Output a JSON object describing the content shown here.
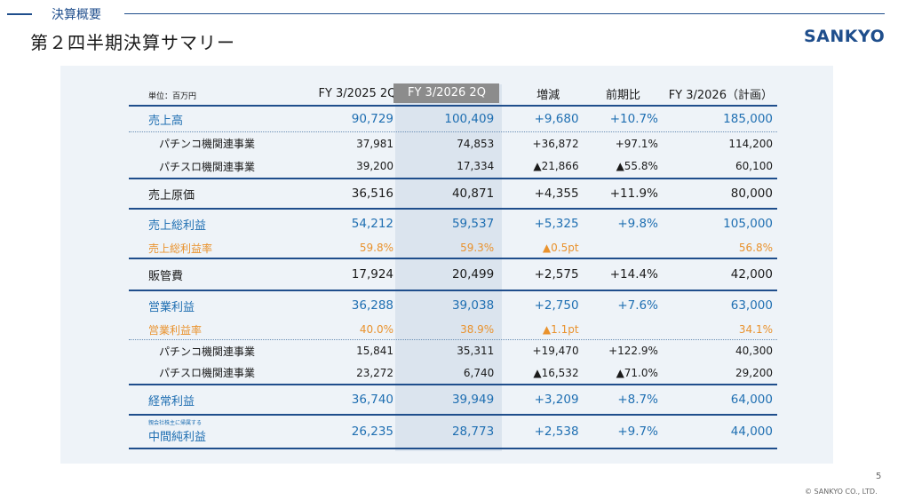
{
  "header": {
    "section_label": "決算概要",
    "title": "第２四半期決算サマリー",
    "logo": "SANKYO"
  },
  "table": {
    "unit_label": "単位：百万円",
    "columns": [
      "FY 3/2025 2Q",
      "FY 3/2026 2Q",
      "増減",
      "前期比",
      "FY 3/2026（計画）"
    ],
    "rows": [
      {
        "label": "売上高",
        "v1": "90,729",
        "v2": "100,409",
        "v3": "+9,680",
        "v4": "+10.7%",
        "v5": "185,000"
      },
      {
        "label": "パチンコ機関連事業",
        "v1": "37,981",
        "v2": "74,853",
        "v3": "+36,872",
        "v4": "+97.1%",
        "v5": "114,200"
      },
      {
        "label": "パチスロ機関連事業",
        "v1": "39,200",
        "v2": "17,334",
        "v3": "▲21,866",
        "v4": "▲55.8%",
        "v5": "60,100"
      },
      {
        "label": "売上原価",
        "v1": "36,516",
        "v2": "40,871",
        "v3": "+4,355",
        "v4": "+11.9%",
        "v5": "80,000"
      },
      {
        "label": "売上総利益",
        "v1": "54,212",
        "v2": "59,537",
        "v3": "+5,325",
        "v4": "+9.8%",
        "v5": "105,000"
      },
      {
        "label": "売上総利益率",
        "v1": "59.8%",
        "v2": "59.3%",
        "v3": "▲0.5pt",
        "v4": "",
        "v5": "56.8%"
      },
      {
        "label": "販管費",
        "v1": "17,924",
        "v2": "20,499",
        "v3": "+2,575",
        "v4": "+14.4%",
        "v5": "42,000"
      },
      {
        "label": "営業利益",
        "v1": "36,288",
        "v2": "39,038",
        "v3": "+2,750",
        "v4": "+7.6%",
        "v5": "63,000"
      },
      {
        "label": "営業利益率",
        "v1": "40.0%",
        "v2": "38.9%",
        "v3": "▲1.1pt",
        "v4": "",
        "v5": "34.1%"
      },
      {
        "label": "パチンコ機関連事業",
        "v1": "15,841",
        "v2": "35,311",
        "v3": "+19,470",
        "v4": "+122.9%",
        "v5": "40,300"
      },
      {
        "label": "パチスロ機関連事業",
        "v1": "23,272",
        "v2": "6,740",
        "v3": "▲16,532",
        "v4": "▲71.0%",
        "v5": "29,200"
      },
      {
        "label": "経常利益",
        "v1": "36,740",
        "v2": "39,949",
        "v3": "+3,209",
        "v4": "+8.7%",
        "v5": "64,000"
      },
      {
        "label_note": "親会社株主に帰属する",
        "label": "中間純利益",
        "v1": "26,235",
        "v2": "28,773",
        "v3": "+2,538",
        "v4": "+9.7%",
        "v5": "44,000"
      }
    ]
  },
  "footer": {
    "page_number": "5",
    "copyright": "© SANKYO CO., LTD."
  },
  "colors": {
    "brand_blue": "#1f4e8c",
    "value_blue": "#1f6fb2",
    "rate_orange": "#e9922d",
    "panel_bg": "#eef3f8",
    "highlight_col": "#dbe4ee"
  }
}
